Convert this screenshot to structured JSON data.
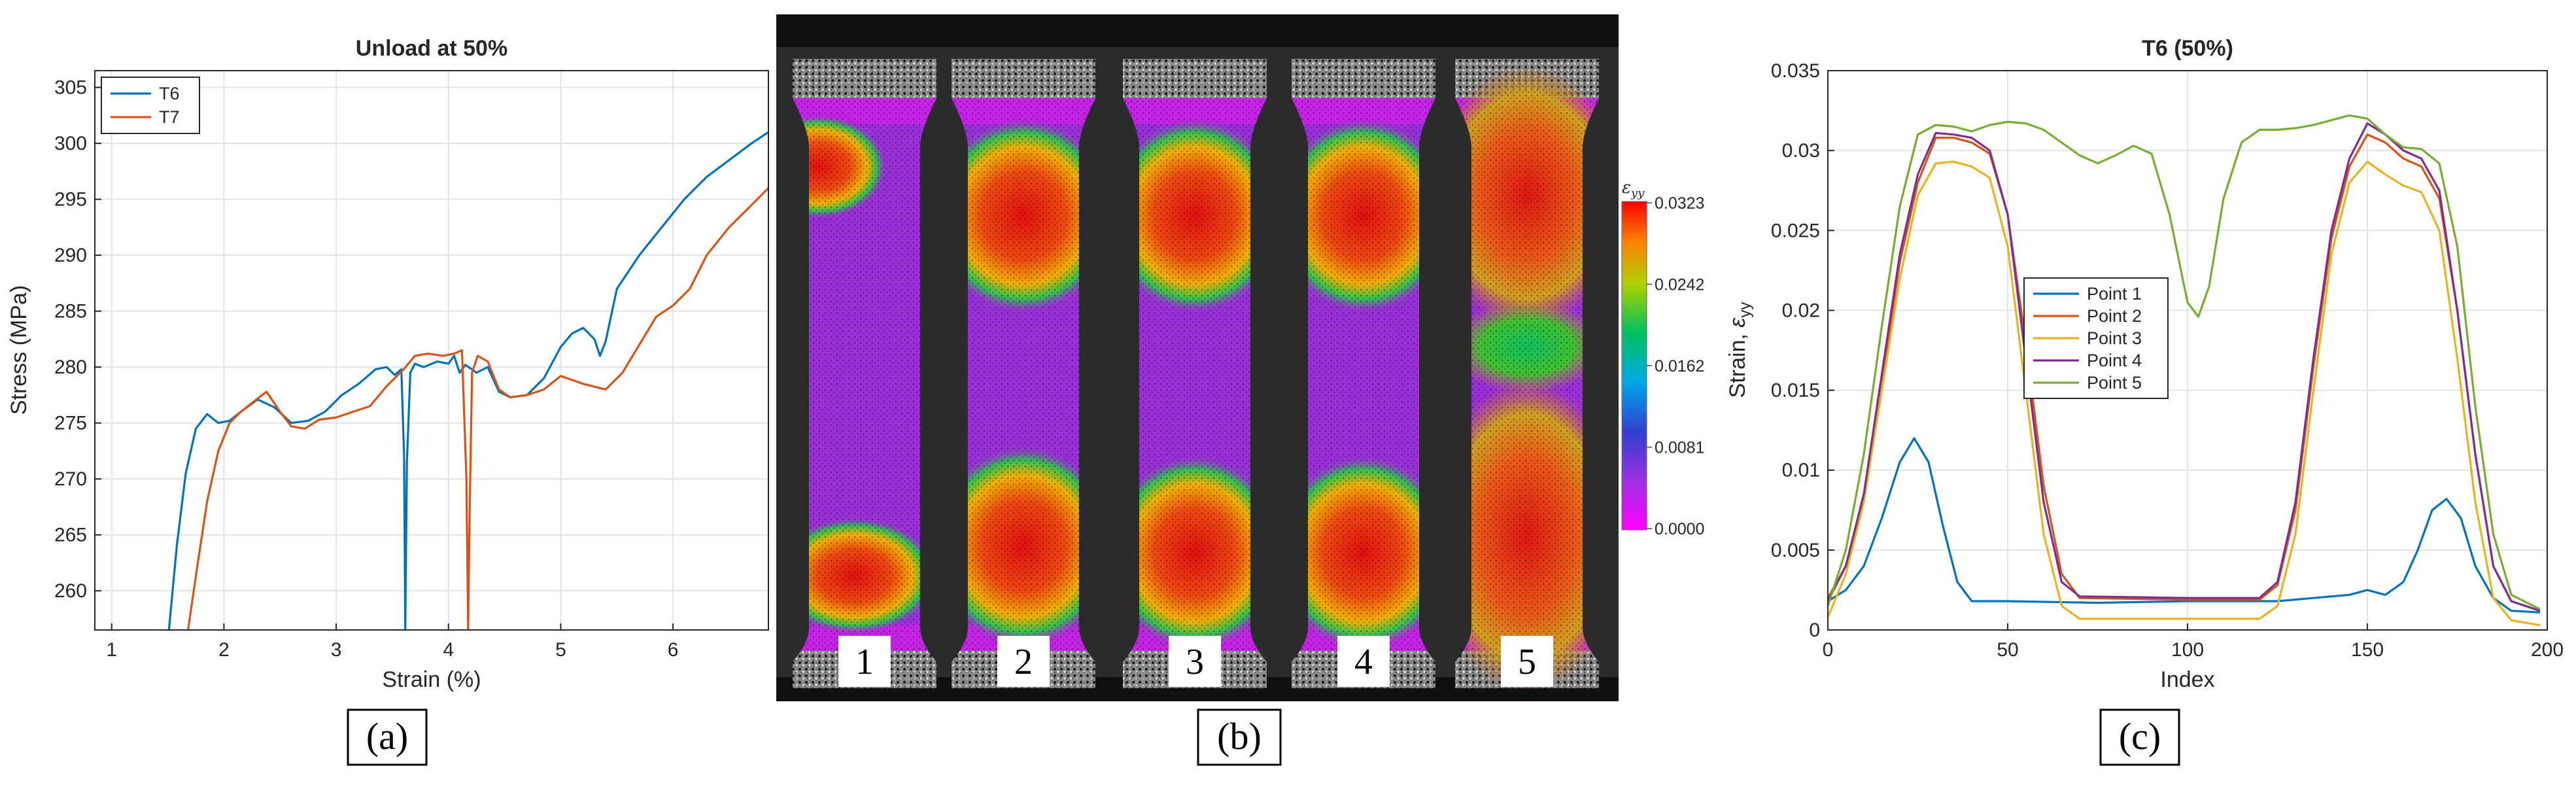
{
  "chart_data": [
    {
      "panel": "(a)",
      "type": "line",
      "title": "Unload at 50%",
      "xlabel": "Strain (%)",
      "ylabel": "Stress (MPa)",
      "xlim": [
        0.85,
        6.85
      ],
      "ylim": [
        256.5,
        306.5
      ],
      "xticks": [
        1,
        2,
        3,
        4,
        5,
        6
      ],
      "yticks": [
        260,
        265,
        270,
        275,
        280,
        285,
        290,
        295,
        300,
        305
      ],
      "grid": true,
      "legend": "top-left",
      "series": [
        {
          "name": "T6",
          "color": "#0072BD",
          "x": [
            1.51,
            1.58,
            1.66,
            1.75,
            1.85,
            1.95,
            2.05,
            2.15,
            2.3,
            2.45,
            2.6,
            2.75,
            2.9,
            3.05,
            3.2,
            3.35,
            3.45,
            3.52,
            3.58,
            3.605,
            3.615,
            3.63,
            3.66,
            3.7,
            3.78,
            3.9,
            4.0,
            4.05,
            4.1,
            4.15,
            4.25,
            4.35,
            4.45,
            4.55,
            4.7,
            4.85,
            5.0,
            5.1,
            5.2,
            5.3,
            5.35,
            5.4,
            5.5,
            5.7,
            5.9,
            6.1,
            6.3,
            6.5,
            6.7,
            6.85
          ],
          "y": [
            256.5,
            264.0,
            270.5,
            274.5,
            275.8,
            275.0,
            275.2,
            276.0,
            277.1,
            276.4,
            275.0,
            275.2,
            276.0,
            277.5,
            278.5,
            279.8,
            280.0,
            279.3,
            279.8,
            272.0,
            256.5,
            271.5,
            279.5,
            280.3,
            280.0,
            280.5,
            280.3,
            281.0,
            279.5,
            280.2,
            279.5,
            280.0,
            277.8,
            277.3,
            277.5,
            279.0,
            281.8,
            283.0,
            283.5,
            282.5,
            281.0,
            282.3,
            287.0,
            290.0,
            292.5,
            295.0,
            297.0,
            298.5,
            300.0,
            301.0
          ]
        },
        {
          "name": "T7",
          "color": "#D95319",
          "x": [
            1.68,
            1.76,
            1.85,
            1.95,
            2.05,
            2.15,
            2.25,
            2.38,
            2.5,
            2.6,
            2.72,
            2.85,
            3.0,
            3.15,
            3.3,
            3.45,
            3.6,
            3.7,
            3.82,
            3.95,
            4.05,
            4.12,
            4.16,
            4.175,
            4.19,
            4.21,
            4.26,
            4.35,
            4.45,
            4.55,
            4.7,
            4.85,
            5.0,
            5.2,
            5.4,
            5.55,
            5.7,
            5.85,
            6.0,
            6.15,
            6.3,
            6.5,
            6.7,
            6.85
          ],
          "y": [
            256.5,
            262.0,
            268.0,
            272.5,
            275.0,
            276.0,
            276.8,
            277.8,
            276.0,
            274.7,
            274.5,
            275.3,
            275.5,
            276.0,
            276.5,
            278.3,
            279.8,
            281.0,
            281.2,
            281.0,
            281.2,
            281.5,
            270.0,
            256.5,
            268.0,
            279.5,
            281.0,
            280.5,
            278.0,
            277.3,
            277.5,
            278.0,
            279.2,
            278.5,
            278.0,
            279.5,
            282.0,
            284.5,
            285.5,
            287.0,
            290.0,
            292.5,
            294.5,
            296.0
          ]
        }
      ]
    },
    {
      "panel": "(b)",
      "type": "heatmap",
      "colorbar_label": "ε_yy",
      "colorbar_ticks": [
        "0.0323",
        "0.0242",
        "0.0162",
        "0.0081",
        "0.0000"
      ],
      "colorbar_range": [
        0.0,
        0.0323
      ],
      "specimens": [
        "1",
        "2",
        "3",
        "4",
        "5"
      ]
    },
    {
      "panel": "(c)",
      "type": "line",
      "title": "T6 (50%)",
      "xlabel": "Index",
      "ylabel": "Strain, ε_yy",
      "xlim": [
        0,
        200
      ],
      "ylim": [
        0,
        0.035
      ],
      "xticks": [
        0,
        50,
        100,
        150,
        200
      ],
      "yticks": [
        0,
        0.005,
        0.01,
        0.015,
        0.02,
        0.025,
        0.03,
        0.035
      ],
      "ytick_labels": [
        "0",
        "0.005",
        "0.01",
        "0.015",
        "0.02",
        "0.025",
        "0.03",
        "0.035"
      ],
      "grid": true,
      "legend": "center-left",
      "series": [
        {
          "name": "Point 1",
          "color": "#0072BD",
          "x": [
            0,
            5,
            10,
            15,
            20,
            24,
            28,
            32,
            36,
            40,
            50,
            75,
            100,
            125,
            145,
            150,
            155,
            160,
            164,
            168,
            172,
            176,
            180,
            185,
            190,
            198
          ],
          "y": [
            0.0018,
            0.0025,
            0.004,
            0.007,
            0.0105,
            0.012,
            0.0105,
            0.0065,
            0.003,
            0.0018,
            0.0018,
            0.0017,
            0.0018,
            0.0018,
            0.0022,
            0.0025,
            0.0022,
            0.003,
            0.005,
            0.0075,
            0.0082,
            0.007,
            0.004,
            0.002,
            0.0012,
            0.0011
          ]
        },
        {
          "name": "Point 2",
          "color": "#D95319",
          "x": [
            0,
            5,
            10,
            15,
            20,
            25,
            30,
            35,
            40,
            45,
            50,
            55,
            60,
            65,
            70,
            100,
            120,
            125,
            130,
            135,
            140,
            145,
            150,
            155,
            160,
            165,
            170,
            175,
            180,
            185,
            190,
            198
          ],
          "y": [
            0.002,
            0.004,
            0.0085,
            0.0155,
            0.023,
            0.028,
            0.0308,
            0.0308,
            0.0305,
            0.0298,
            0.026,
            0.018,
            0.009,
            0.0035,
            0.002,
            0.0019,
            0.0019,
            0.0028,
            0.0075,
            0.0165,
            0.0245,
            0.029,
            0.031,
            0.0305,
            0.0295,
            0.029,
            0.027,
            0.02,
            0.011,
            0.004,
            0.0018,
            0.0012
          ]
        },
        {
          "name": "Point 3",
          "color": "#EDB120",
          "x": [
            0,
            5,
            10,
            15,
            20,
            25,
            30,
            35,
            40,
            45,
            50,
            55,
            60,
            65,
            70,
            100,
            120,
            125,
            130,
            135,
            140,
            145,
            150,
            155,
            160,
            165,
            170,
            175,
            180,
            185,
            190,
            198
          ],
          "y": [
            0.0008,
            0.0035,
            0.008,
            0.015,
            0.022,
            0.0272,
            0.0292,
            0.0293,
            0.029,
            0.0283,
            0.024,
            0.015,
            0.006,
            0.0015,
            0.0007,
            0.0007,
            0.0007,
            0.0015,
            0.006,
            0.015,
            0.0235,
            0.028,
            0.0293,
            0.0285,
            0.0278,
            0.0274,
            0.025,
            0.017,
            0.008,
            0.002,
            0.0006,
            0.0003
          ]
        },
        {
          "name": "Point 4",
          "color": "#7E2F8E",
          "x": [
            0,
            5,
            10,
            15,
            20,
            25,
            30,
            35,
            40,
            45,
            50,
            55,
            60,
            65,
            70,
            100,
            120,
            125,
            130,
            135,
            140,
            145,
            150,
            155,
            160,
            165,
            170,
            175,
            180,
            185,
            190,
            198
          ],
          "y": [
            0.0018,
            0.004,
            0.0085,
            0.016,
            0.0235,
            0.0285,
            0.0311,
            0.031,
            0.0308,
            0.03,
            0.026,
            0.017,
            0.008,
            0.003,
            0.0021,
            0.002,
            0.002,
            0.003,
            0.008,
            0.017,
            0.025,
            0.0295,
            0.0317,
            0.031,
            0.03,
            0.0295,
            0.0275,
            0.02,
            0.011,
            0.004,
            0.0018,
            0.0012
          ]
        },
        {
          "name": "Point 5",
          "color": "#77AC30",
          "x": [
            0,
            5,
            10,
            15,
            20,
            25,
            30,
            35,
            40,
            45,
            50,
            55,
            60,
            65,
            70,
            75,
            80,
            85,
            90,
            95,
            100,
            103,
            106,
            110,
            115,
            120,
            125,
            130,
            135,
            140,
            145,
            150,
            155,
            160,
            165,
            170,
            175,
            180,
            185,
            190,
            198
          ],
          "y": [
            0.0015,
            0.005,
            0.011,
            0.019,
            0.0265,
            0.031,
            0.0316,
            0.0315,
            0.0312,
            0.0316,
            0.0318,
            0.0317,
            0.0313,
            0.0305,
            0.0297,
            0.0292,
            0.0297,
            0.0303,
            0.0298,
            0.026,
            0.0205,
            0.0196,
            0.0215,
            0.027,
            0.0305,
            0.0313,
            0.0313,
            0.0314,
            0.0316,
            0.0319,
            0.0322,
            0.032,
            0.031,
            0.0302,
            0.0301,
            0.0292,
            0.024,
            0.014,
            0.006,
            0.0022,
            0.0013
          ]
        }
      ]
    }
  ]
}
